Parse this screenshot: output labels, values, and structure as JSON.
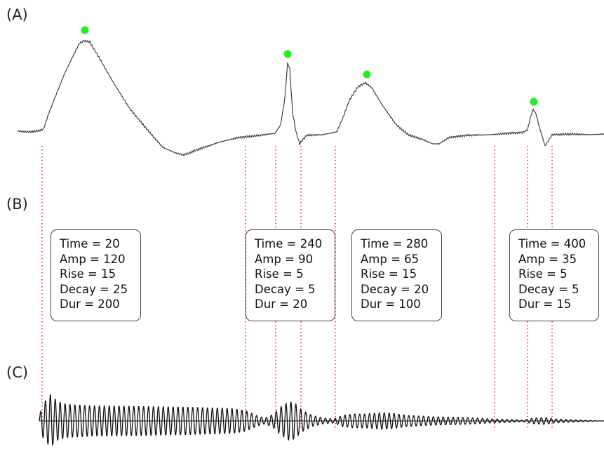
{
  "panels": {
    "a_label": "(A)",
    "b_label": "(B)",
    "c_label": "(C)"
  },
  "events": [
    {
      "time_line": "Time = 20",
      "amp_line": "Amp = 120",
      "rise_line": "Rise = 15",
      "decay_line": "Decay = 25",
      "dur_line": "Dur = 200"
    },
    {
      "time_line": "Time = 240",
      "amp_line": "Amp = 90",
      "rise_line": "Rise = 5",
      "decay_line": "Decay = 5",
      "dur_line": "Dur = 20"
    },
    {
      "time_line": "Time = 280",
      "amp_line": "Amp = 65",
      "rise_line": "Rise = 15",
      "decay_line": "Decay = 20",
      "dur_line": "Dur = 100"
    },
    {
      "time_line": "Time = 400",
      "amp_line": "Amp = 35",
      "rise_line": "Rise = 5",
      "decay_line": "Decay = 5",
      "dur_line": "Dur = 15"
    }
  ],
  "colors": {
    "trace": "#333333",
    "peak_marker": "#22ee22",
    "guide_line": "#ee2222",
    "oscillation": "#111111"
  }
}
